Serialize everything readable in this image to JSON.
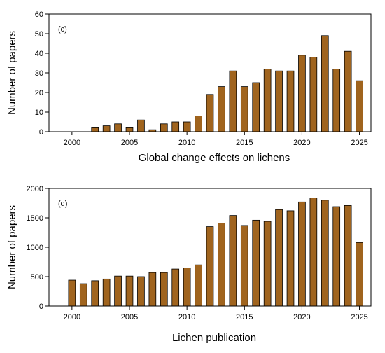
{
  "chart_data": [
    {
      "type": "bar",
      "panel_label": "(c)",
      "xlabel": "Global change effects on lichens",
      "ylabel": "Number of papers",
      "ylim": [
        0,
        60
      ],
      "xlim": [
        1998,
        2026
      ],
      "yticks": [
        0,
        10,
        20,
        30,
        40,
        50,
        60
      ],
      "xticks": [
        2000,
        2005,
        2010,
        2015,
        2020,
        2025
      ],
      "x": [
        2000,
        2001,
        2002,
        2003,
        2004,
        2005,
        2006,
        2007,
        2008,
        2009,
        2010,
        2011,
        2012,
        2013,
        2014,
        2015,
        2016,
        2017,
        2018,
        2019,
        2020,
        2021,
        2022,
        2023,
        2024,
        2025
      ],
      "values": [
        0,
        0,
        2,
        3,
        4,
        2,
        6,
        1,
        4,
        5,
        5,
        8,
        19,
        23,
        31,
        23,
        25,
        32,
        31,
        31,
        39,
        38,
        49,
        32,
        41,
        26
      ],
      "bar_color": "#A0641E",
      "grid": false
    },
    {
      "type": "bar",
      "panel_label": "(d)",
      "xlabel": "Lichen publication",
      "ylabel": "Number of papers",
      "ylim": [
        0,
        2000
      ],
      "xlim": [
        1998,
        2026
      ],
      "yticks": [
        0,
        500,
        1000,
        1500,
        2000
      ],
      "xticks": [
        2000,
        2005,
        2010,
        2015,
        2020,
        2025
      ],
      "x": [
        2000,
        2001,
        2002,
        2003,
        2004,
        2005,
        2006,
        2007,
        2008,
        2009,
        2010,
        2011,
        2012,
        2013,
        2014,
        2015,
        2016,
        2017,
        2018,
        2019,
        2020,
        2021,
        2022,
        2023,
        2024,
        2025
      ],
      "values": [
        440,
        380,
        430,
        460,
        510,
        510,
        500,
        570,
        570,
        630,
        650,
        700,
        1350,
        1410,
        1540,
        1370,
        1460,
        1440,
        1640,
        1620,
        1770,
        1840,
        1800,
        1690,
        1710,
        1080
      ],
      "bar_color": "#A0641E",
      "grid": false
    }
  ]
}
